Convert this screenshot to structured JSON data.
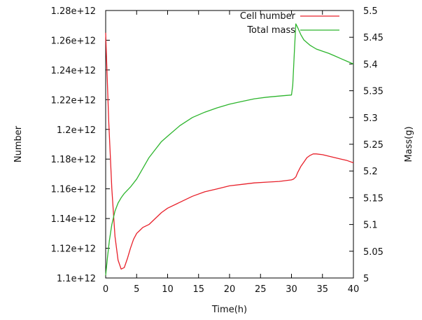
{
  "chart_data": {
    "type": "line",
    "title": "",
    "xlabel": "Time(h)",
    "ylabel": "Number",
    "y2label": "Mass(g)",
    "xlim": [
      0,
      40
    ],
    "ylim": [
      1100000000000.0,
      1280000000000.0
    ],
    "y2lim": [
      5.0,
      5.5
    ],
    "grid": false,
    "legend": "top-right",
    "x_ticks": [
      "0",
      "5",
      "10",
      "15",
      "20",
      "25",
      "30",
      "35",
      "40"
    ],
    "x_tick_values": [
      0,
      5,
      10,
      15,
      20,
      25,
      30,
      35,
      40
    ],
    "y_ticks": [
      "1.1e+12",
      "1.12e+12",
      "1.14e+12",
      "1.16e+12",
      "1.18e+12",
      "1.2e+12",
      "1.22e+12",
      "1.24e+12",
      "1.26e+12",
      "1.28e+12"
    ],
    "y_tick_values": [
      1100000000000.0,
      1120000000000.0,
      1140000000000.0,
      1160000000000.0,
      1180000000000.0,
      1200000000000.0,
      1220000000000.0,
      1240000000000.0,
      1260000000000.0,
      1280000000000.0
    ],
    "y2_ticks": [
      "5",
      "5.05",
      "5.1",
      "5.15",
      "5.2",
      "5.25",
      "5.3",
      "5.35",
      "5.4",
      "5.45",
      "5.5"
    ],
    "y2_tick_values": [
      5.0,
      5.05,
      5.1,
      5.15,
      5.2,
      5.25,
      5.3,
      5.35,
      5.4,
      5.45,
      5.5
    ],
    "series": [
      {
        "name": "Cell number",
        "axis": "left",
        "color": "#e8202a",
        "x": [
          0,
          0.2,
          0.5,
          1,
          1.5,
          2,
          2.5,
          3,
          3.5,
          4,
          4.5,
          5,
          5.5,
          6,
          7,
          8,
          9,
          10,
          12,
          14,
          16,
          18,
          20,
          22,
          24,
          26,
          28,
          29,
          30,
          30.3,
          30.7,
          31,
          31.5,
          32,
          32.5,
          33,
          33.5,
          34,
          35,
          36,
          37,
          38,
          39,
          40
        ],
        "y": [
          1265000000000.0,
          1240000000000.0,
          1205000000000.0,
          1160000000000.0,
          1128000000000.0,
          1112000000000.0,
          1106000000000.0,
          1107000000000.0,
          1113000000000.0,
          1120000000000.0,
          1126000000000.0,
          1130000000000.0,
          1132000000000.0,
          1134000000000.0,
          1136000000000.0,
          1140000000000.0,
          1144000000000.0,
          1147000000000.0,
          1151000000000.0,
          1155000000000.0,
          1158000000000.0,
          1160000000000.0,
          1162000000000.0,
          1163000000000.0,
          1164000000000.0,
          1164500000000.0,
          1165000000000.0,
          1165500000000.0,
          1166000000000.0,
          1166500000000.0,
          1168000000000.0,
          1171000000000.0,
          1175000000000.0,
          1178000000000.0,
          1181000000000.0,
          1182500000000.0,
          1183500000000.0,
          1183500000000.0,
          1183000000000.0,
          1182000000000.0,
          1181000000000.0,
          1180000000000.0,
          1179000000000.0,
          1177500000000.0
        ]
      },
      {
        "name": "Total mass",
        "axis": "right",
        "color": "#2db52d",
        "x": [
          0,
          0.3,
          0.6,
          1,
          1.5,
          2,
          2.5,
          3,
          4,
          5,
          6,
          7,
          8,
          9,
          10,
          12,
          14,
          16,
          18,
          20,
          22,
          24,
          26,
          28,
          30,
          30.2,
          30.5,
          30.7,
          31,
          31.5,
          32,
          33,
          34,
          35,
          36,
          37,
          38,
          39,
          40
        ],
        "y": [
          5.005,
          5.04,
          5.07,
          5.1,
          5.125,
          5.14,
          5.15,
          5.158,
          5.17,
          5.185,
          5.205,
          5.225,
          5.24,
          5.255,
          5.265,
          5.285,
          5.3,
          5.31,
          5.318,
          5.325,
          5.33,
          5.335,
          5.338,
          5.34,
          5.342,
          5.36,
          5.43,
          5.475,
          5.468,
          5.455,
          5.445,
          5.435,
          5.428,
          5.424,
          5.42,
          5.415,
          5.41,
          5.405,
          5.4
        ]
      }
    ]
  }
}
